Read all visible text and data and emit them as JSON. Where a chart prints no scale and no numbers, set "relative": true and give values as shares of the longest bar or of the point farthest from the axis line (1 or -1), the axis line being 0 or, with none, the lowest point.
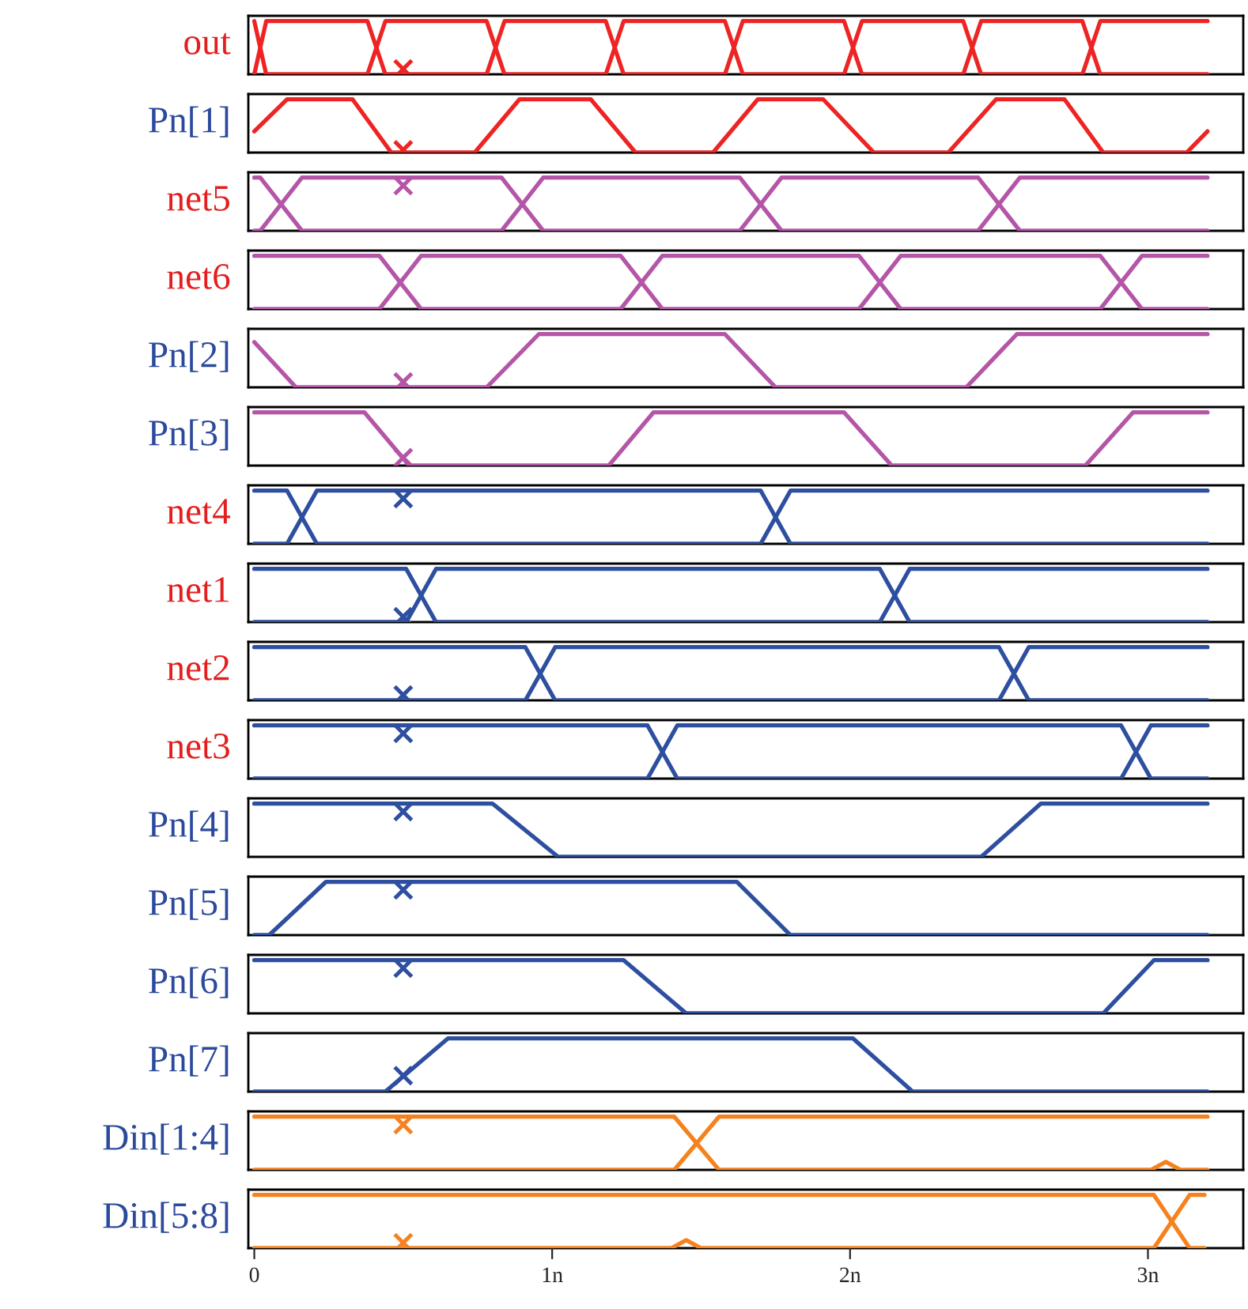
{
  "chart_data": [
    {
      "type": "line",
      "relative": true,
      "ylabel": "out",
      "xlim": [
        -0.02,
        3.32
      ],
      "tick_labels": false,
      "series": [
        {
          "color": "#ee2424",
          "x": [
            0,
            0.04,
            0.38,
            0.44,
            0.78,
            0.84,
            1.18,
            1.24,
            1.58,
            1.64,
            1.98,
            2.04,
            2.38,
            2.44,
            2.78,
            2.84,
            3.2
          ],
          "values": [
            1,
            0,
            0,
            1,
            1,
            0,
            0,
            1,
            1,
            0,
            0,
            1,
            1,
            0,
            0,
            1,
            1
          ]
        },
        {
          "color": "#ee2424",
          "x": [
            0,
            0.04,
            0.38,
            0.44,
            0.78,
            0.84,
            1.18,
            1.24,
            1.58,
            1.64,
            1.98,
            2.04,
            2.38,
            2.44,
            2.78,
            2.84,
            3.2
          ],
          "values": [
            0,
            1,
            1,
            0,
            0,
            1,
            1,
            0,
            0,
            1,
            1,
            0,
            0,
            1,
            1,
            0,
            0
          ]
        },
        {
          "type": "scatter",
          "marker": "cross",
          "color": "#ee2424",
          "x": [
            0.5
          ],
          "values": [
            0.1
          ]
        }
      ]
    },
    {
      "type": "line",
      "relative": true,
      "ylabel": "Pn[1]",
      "xlim": [
        -0.02,
        3.32
      ],
      "tick_labels": false,
      "series": [
        {
          "color": "#ee2424",
          "x": [
            0,
            0.11,
            0.33,
            0.46,
            0.74,
            0.89,
            1.13,
            1.28,
            1.54,
            1.69,
            1.91,
            2.08,
            2.33,
            2.49,
            2.72,
            2.85,
            3.13,
            3.2
          ],
          "values": [
            0.4,
            1,
            1,
            0,
            0,
            1,
            1,
            0,
            0,
            1,
            1,
            0,
            0,
            1,
            1,
            0,
            0,
            0.4
          ]
        },
        {
          "type": "scatter",
          "marker": "cross",
          "color": "#ee2424",
          "x": [
            0.5
          ],
          "values": [
            0.05
          ]
        }
      ]
    },
    {
      "type": "line",
      "relative": true,
      "ylabel": "net5",
      "xlim": [
        -0.02,
        3.32
      ],
      "tick_labels": false,
      "series": [
        {
          "color": "#b455a8",
          "x": [
            0,
            0.02,
            0.16,
            0.83,
            0.97,
            1.63,
            1.77,
            2.43,
            2.57,
            3.2
          ],
          "values": [
            1,
            1,
            0,
            0,
            1,
            1,
            0,
            0,
            1,
            1
          ]
        },
        {
          "color": "#b455a8",
          "x": [
            0,
            0.02,
            0.16,
            0.83,
            0.97,
            1.63,
            1.77,
            2.43,
            2.57,
            3.2
          ],
          "values": [
            0,
            0,
            1,
            1,
            0,
            0,
            1,
            1,
            0,
            0
          ]
        },
        {
          "type": "scatter",
          "marker": "cross",
          "color": "#b455a8",
          "x": [
            0.5
          ],
          "values": [
            0.85
          ]
        }
      ]
    },
    {
      "type": "line",
      "relative": true,
      "ylabel": "net6",
      "xlim": [
        -0.02,
        3.32
      ],
      "tick_labels": false,
      "series": [
        {
          "color": "#b455a8",
          "x": [
            0,
            0.42,
            0.56,
            1.23,
            1.37,
            2.03,
            2.17,
            2.84,
            2.98,
            3.2
          ],
          "values": [
            1,
            1,
            0,
            0,
            1,
            1,
            0,
            0,
            1,
            1
          ]
        },
        {
          "color": "#b455a8",
          "x": [
            0,
            0.42,
            0.56,
            1.23,
            1.37,
            2.03,
            2.17,
            2.84,
            2.98,
            3.2
          ],
          "values": [
            0,
            0,
            1,
            1,
            0,
            0,
            1,
            1,
            0,
            0
          ]
        }
      ]
    },
    {
      "type": "line",
      "relative": true,
      "ylabel": "Pn[2]",
      "xlim": [
        -0.02,
        3.32
      ],
      "tick_labels": false,
      "series": [
        {
          "color": "#b455a8",
          "x": [
            0,
            0.14,
            0.78,
            0.955,
            1.58,
            1.75,
            2.39,
            2.56,
            3.2
          ],
          "values": [
            0.85,
            0,
            0,
            1,
            1,
            0,
            0,
            1,
            1
          ]
        },
        {
          "type": "scatter",
          "marker": "cross",
          "color": "#b455a8",
          "x": [
            0.5
          ],
          "values": [
            0.1
          ]
        }
      ]
    },
    {
      "type": "line",
      "relative": true,
      "ylabel": "Pn[3]",
      "xlim": [
        -0.02,
        3.32
      ],
      "tick_labels": false,
      "series": [
        {
          "color": "#b455a8",
          "x": [
            0,
            0.37,
            0.52,
            1.19,
            1.34,
            1.98,
            2.14,
            2.79,
            2.95,
            3.2
          ],
          "values": [
            1,
            1,
            0,
            0,
            1,
            1,
            0,
            0,
            1,
            1
          ]
        },
        {
          "type": "scatter",
          "marker": "cross",
          "color": "#b455a8",
          "x": [
            0.5
          ],
          "values": [
            0.15
          ]
        }
      ]
    },
    {
      "type": "line",
      "relative": true,
      "ylabel": "net4",
      "xlim": [
        -0.02,
        3.32
      ],
      "tick_labels": false,
      "series": [
        {
          "color": "#2e4fa0",
          "x": [
            0,
            0.11,
            0.21,
            1.7,
            1.8,
            3.2
          ],
          "values": [
            1,
            1,
            0,
            0,
            1,
            1
          ]
        },
        {
          "color": "#2e4fa0",
          "x": [
            0,
            0.11,
            0.21,
            1.7,
            1.8,
            3.2
          ],
          "values": [
            0,
            0,
            1,
            1,
            0,
            0
          ]
        },
        {
          "type": "scatter",
          "marker": "cross",
          "color": "#2e4fa0",
          "x": [
            0.5
          ],
          "values": [
            0.85
          ]
        }
      ]
    },
    {
      "type": "line",
      "relative": true,
      "ylabel": "net1",
      "xlim": [
        -0.02,
        3.32
      ],
      "tick_labels": false,
      "series": [
        {
          "color": "#2e4fa0",
          "x": [
            0,
            0.51,
            0.61,
            2.1,
            2.2,
            3.2
          ],
          "values": [
            1,
            1,
            0,
            0,
            1,
            1
          ]
        },
        {
          "color": "#2e4fa0",
          "x": [
            0,
            0.51,
            0.61,
            2.1,
            2.2,
            3.2
          ],
          "values": [
            0,
            0,
            1,
            1,
            0,
            0
          ]
        },
        {
          "type": "scatter",
          "marker": "cross",
          "color": "#2e4fa0",
          "x": [
            0.5
          ],
          "values": [
            0.1
          ]
        }
      ]
    },
    {
      "type": "line",
      "relative": true,
      "ylabel": "net2",
      "xlim": [
        -0.02,
        3.32
      ],
      "tick_labels": false,
      "series": [
        {
          "color": "#2e4fa0",
          "x": [
            0,
            0.91,
            1.01,
            2.5,
            2.6,
            3.2
          ],
          "values": [
            1,
            1,
            0,
            0,
            1,
            1
          ]
        },
        {
          "color": "#2e4fa0",
          "x": [
            0,
            0.91,
            1.01,
            2.5,
            2.6,
            3.2
          ],
          "values": [
            0,
            0,
            1,
            1,
            0,
            0
          ]
        },
        {
          "type": "scatter",
          "marker": "cross",
          "color": "#2e4fa0",
          "x": [
            0.5
          ],
          "values": [
            0.1
          ]
        }
      ]
    },
    {
      "type": "line",
      "relative": true,
      "ylabel": "net3",
      "xlim": [
        -0.02,
        3.32
      ],
      "tick_labels": false,
      "series": [
        {
          "color": "#2e4fa0",
          "x": [
            0,
            1.32,
            1.42,
            2.91,
            3.01,
            3.2
          ],
          "values": [
            1,
            1,
            0,
            0,
            1,
            1
          ]
        },
        {
          "color": "#2e4fa0",
          "x": [
            0,
            1.32,
            1.42,
            2.91,
            3.01,
            3.2
          ],
          "values": [
            0,
            0,
            1,
            1,
            0,
            0
          ]
        },
        {
          "type": "scatter",
          "marker": "cross",
          "color": "#2e4fa0",
          "x": [
            0.5
          ],
          "values": [
            0.85
          ]
        }
      ]
    },
    {
      "type": "line",
      "relative": true,
      "ylabel": "Pn[4]",
      "xlim": [
        -0.02,
        3.32
      ],
      "tick_labels": false,
      "series": [
        {
          "color": "#2e4fa0",
          "x": [
            0,
            0.8,
            1.02,
            2.44,
            2.64,
            3.2
          ],
          "values": [
            1,
            1,
            0,
            0,
            1,
            1
          ]
        },
        {
          "type": "scatter",
          "marker": "cross",
          "color": "#2e4fa0",
          "x": [
            0.5
          ],
          "values": [
            0.85
          ]
        }
      ]
    },
    {
      "type": "line",
      "relative": true,
      "ylabel": "Pn[5]",
      "xlim": [
        -0.02,
        3.32
      ],
      "tick_labels": false,
      "series": [
        {
          "color": "#2e4fa0",
          "x": [
            0,
            0.05,
            0.24,
            1.62,
            1.8,
            3.2
          ],
          "values": [
            0,
            0,
            1,
            1,
            0,
            0
          ]
        },
        {
          "type": "scatter",
          "marker": "cross",
          "color": "#2e4fa0",
          "x": [
            0.5
          ],
          "values": [
            0.85
          ]
        }
      ]
    },
    {
      "type": "line",
      "relative": true,
      "ylabel": "Pn[6]",
      "xlim": [
        -0.02,
        3.32
      ],
      "tick_labels": false,
      "series": [
        {
          "color": "#2e4fa0",
          "x": [
            0,
            1.24,
            1.45,
            2.85,
            3.02,
            3.2
          ],
          "values": [
            1,
            1,
            0,
            0,
            1,
            1
          ]
        },
        {
          "type": "scatter",
          "marker": "cross",
          "color": "#2e4fa0",
          "x": [
            0.5
          ],
          "values": [
            0.85
          ]
        }
      ]
    },
    {
      "type": "line",
      "relative": true,
      "ylabel": "Pn[7]",
      "xlim": [
        -0.02,
        3.32
      ],
      "tick_labels": false,
      "series": [
        {
          "color": "#2e4fa0",
          "x": [
            0,
            0.44,
            0.65,
            2.01,
            2.21,
            3.2
          ],
          "values": [
            0,
            0,
            1,
            1,
            0,
            0
          ]
        },
        {
          "type": "scatter",
          "marker": "cross",
          "color": "#2e4fa0",
          "x": [
            0.5
          ],
          "values": [
            0.3
          ]
        }
      ]
    },
    {
      "type": "line",
      "relative": true,
      "ylabel": "Din[1:4]",
      "xlim": [
        -0.02,
        3.32
      ],
      "tick_labels": false,
      "series": [
        {
          "color": "#f5821f",
          "x": [
            0,
            1.41,
            1.56,
            3.01,
            3.06,
            3.11,
            3.2
          ],
          "values": [
            1,
            1,
            0,
            0,
            0.15,
            0,
            0
          ]
        },
        {
          "color": "#f5821f",
          "x": [
            0,
            1.41,
            1.56,
            3.2
          ],
          "values": [
            0,
            0,
            1,
            1
          ]
        },
        {
          "type": "scatter",
          "marker": "cross",
          "color": "#f5821f",
          "x": [
            0.5
          ],
          "values": [
            0.85
          ]
        }
      ]
    },
    {
      "type": "line",
      "relative": true,
      "ylabel": "Din[5:8]",
      "xlim": [
        -0.02,
        3.32
      ],
      "tick_labels": "x",
      "xticks": [
        0,
        {
          "value": 1,
          "label": "1n"
        },
        {
          "value": 2,
          "label": "2n"
        },
        {
          "value": 3,
          "label": "3n"
        }
      ],
      "series": [
        {
          "color": "#f5821f",
          "x": [
            0,
            3.02,
            3.14,
            3.19
          ],
          "values": [
            1,
            1,
            0,
            0
          ]
        },
        {
          "color": "#f5821f",
          "x": [
            0,
            1.4,
            1.45,
            1.5,
            3.02,
            3.14,
            3.19
          ],
          "values": [
            0,
            0,
            0.15,
            0,
            0,
            1,
            1
          ]
        },
        {
          "type": "scatter",
          "marker": "cross",
          "color": "#f5821f",
          "x": [
            0.5
          ],
          "values": [
            0.1
          ]
        }
      ]
    }
  ]
}
